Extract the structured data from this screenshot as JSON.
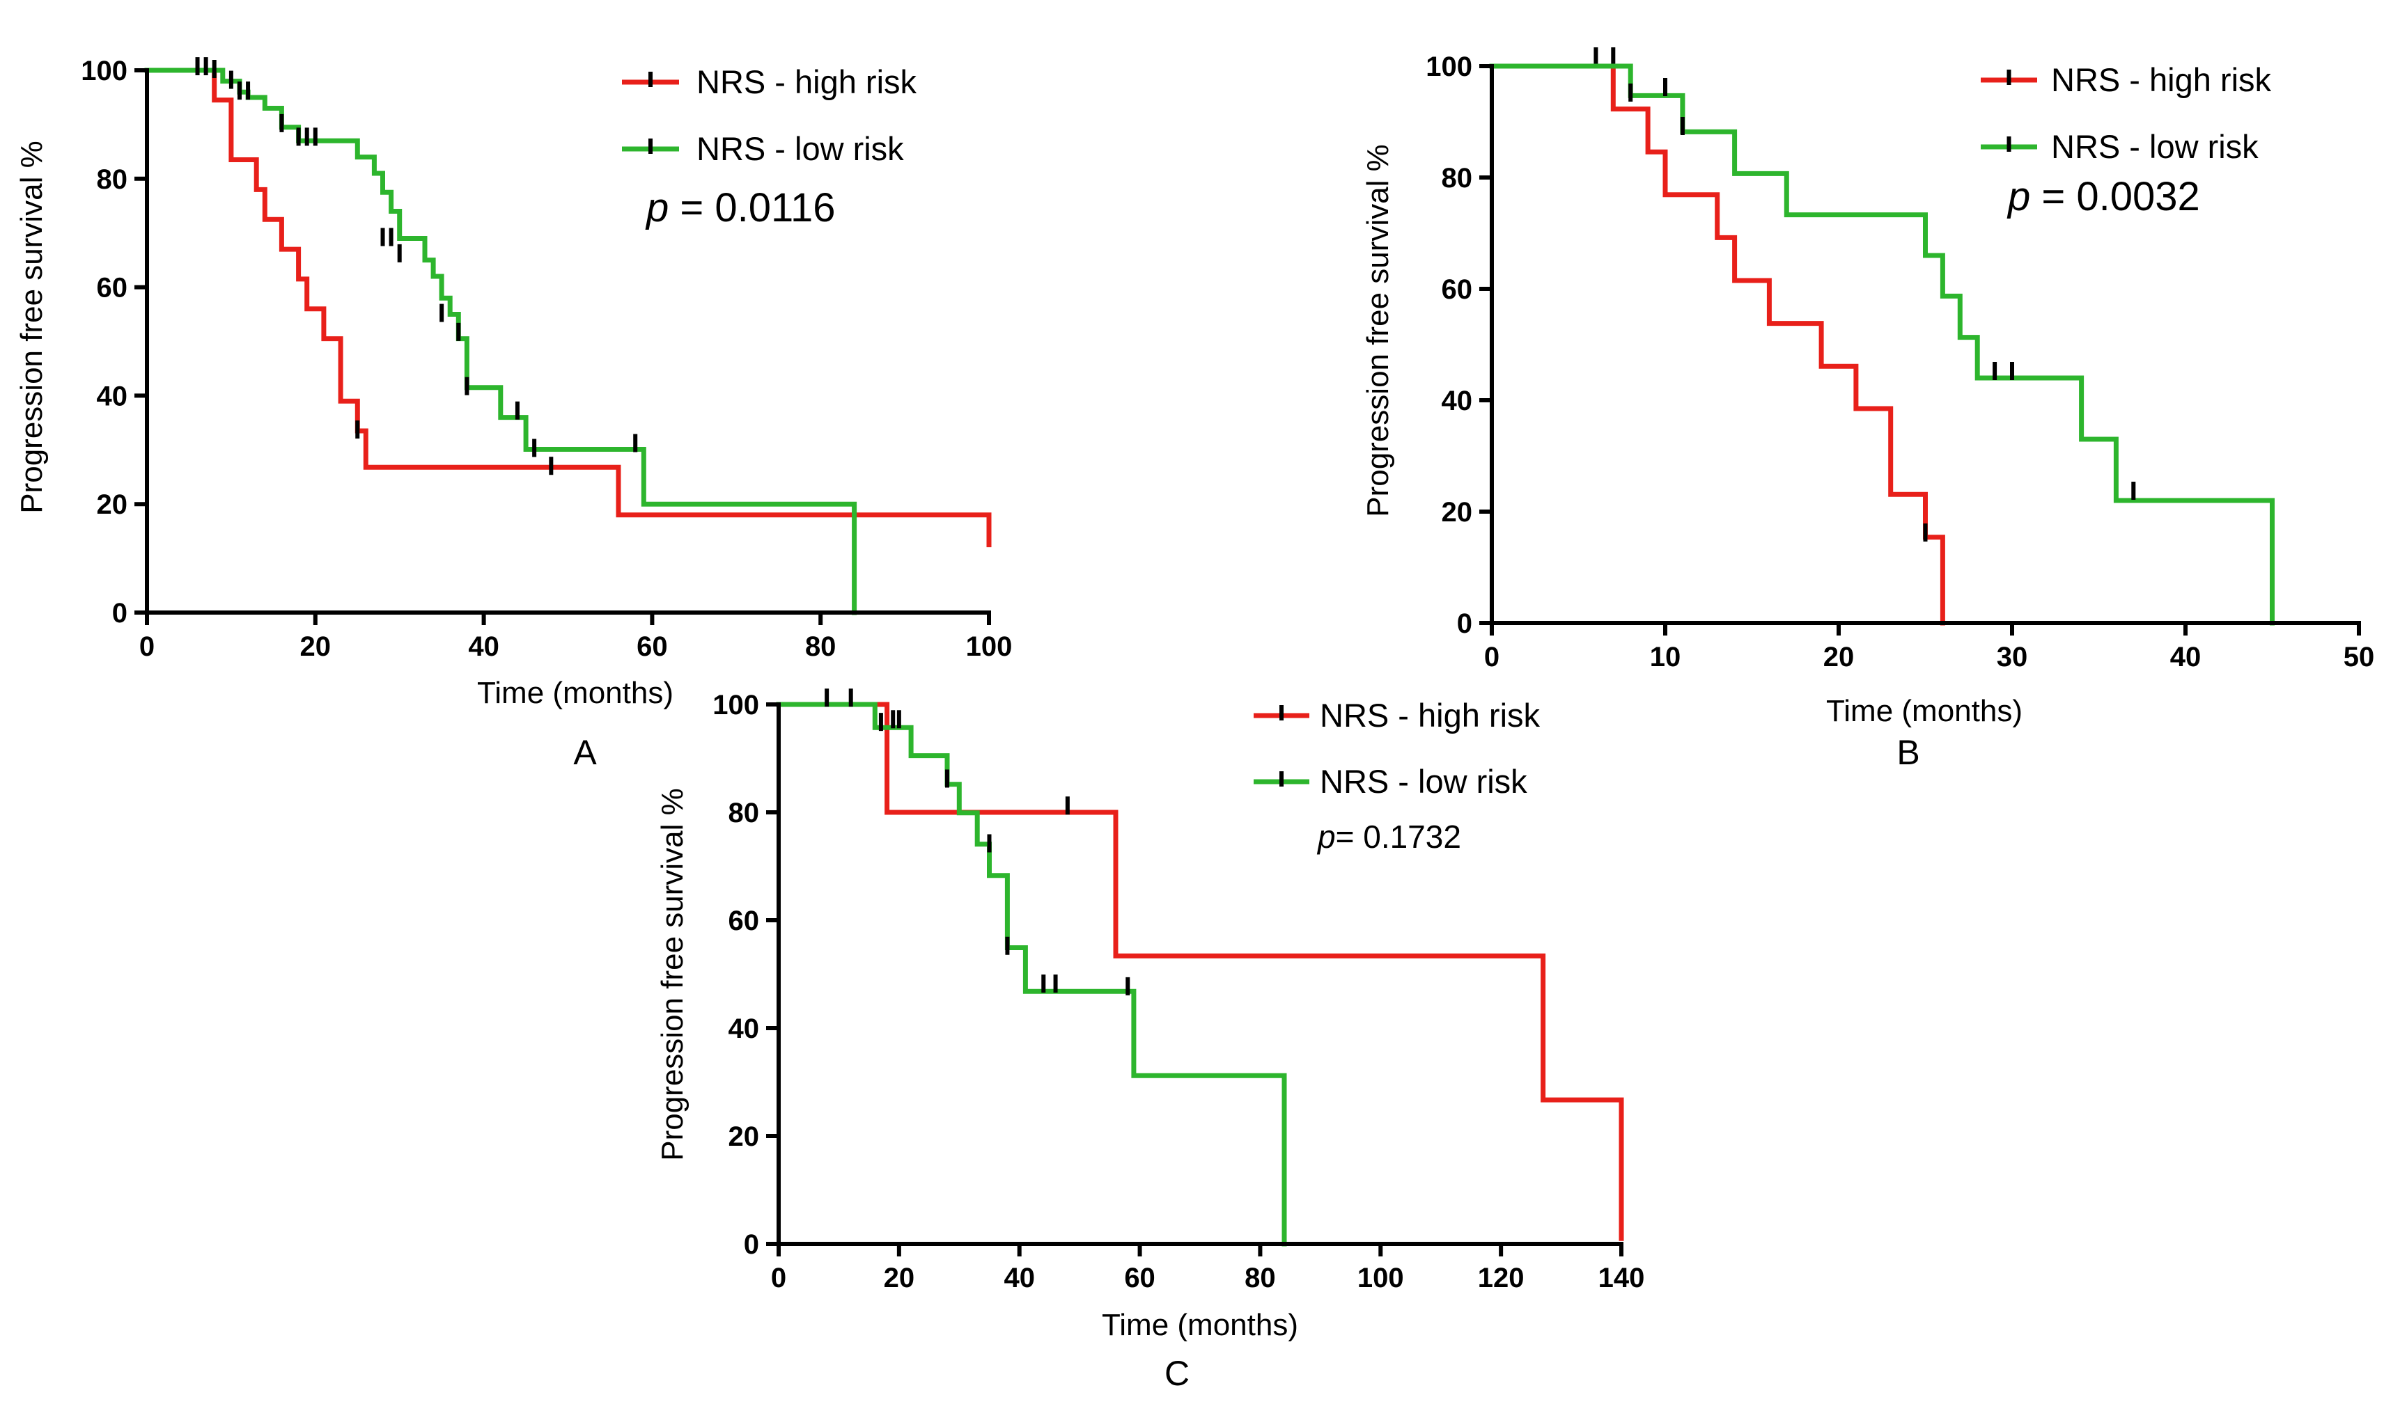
{
  "chart_data": [
    {
      "type": "line",
      "panel_label": "A",
      "title": "",
      "xlabel": "Time (months)",
      "ylabel": "Progression free survival %",
      "xlim": [
        0,
        100
      ],
      "ylim": [
        0,
        100
      ],
      "xticks": [
        0,
        20,
        40,
        60,
        80,
        100
      ],
      "yticks": [
        0,
        20,
        40,
        60,
        80,
        100
      ],
      "legend": [
        "NRS - high risk",
        "NRS - low risk"
      ],
      "legend_position": "top-right",
      "p_prefix": "p",
      "p_text": " = 0.0116",
      "series": [
        {
          "name": "NRS - high risk",
          "color": "#e8201a",
          "x": [
            0,
            7,
            8,
            10,
            13,
            14,
            16,
            18,
            19,
            21,
            23,
            25,
            26,
            56,
            100,
            100
          ],
          "y": [
            100,
            100,
            94.5,
            83.5,
            78,
            72.5,
            67,
            61.5,
            56,
            50.5,
            39,
            33.5,
            26.8,
            18,
            18,
            12.5
          ],
          "censored": [
            [
              25,
              33.5
            ],
            [
              48,
              26.8
            ]
          ]
        },
        {
          "name": "NRS - low risk",
          "color": "#2db52d",
          "x": [
            0,
            6,
            9,
            11,
            12,
            14,
            16,
            18,
            25,
            27,
            28,
            29,
            30,
            33,
            34,
            35,
            36,
            37,
            38,
            42,
            45,
            59,
            84,
            84
          ],
          "y": [
            100,
            100,
            98,
            96,
            95,
            93,
            89.5,
            87,
            84,
            81,
            77.5,
            74,
            69,
            65,
            62,
            58,
            55,
            50.5,
            41.5,
            36,
            30.1,
            20,
            20,
            0
          ],
          "censored": [
            [
              6,
              100.5
            ],
            [
              7,
              100.5
            ],
            [
              8,
              100
            ],
            [
              10,
              98
            ],
            [
              11,
              96
            ],
            [
              12,
              96
            ],
            [
              16,
              90
            ],
            [
              18,
              87.5
            ],
            [
              19,
              87.5
            ],
            [
              20,
              87.5
            ],
            [
              28,
              69
            ],
            [
              29,
              69
            ],
            [
              30,
              66
            ],
            [
              35,
              55
            ],
            [
              37,
              51.5
            ],
            [
              38,
              41.5
            ],
            [
              44,
              37
            ],
            [
              46,
              30.1
            ],
            [
              58,
              31
            ]
          ]
        }
      ]
    },
    {
      "type": "line",
      "panel_label": "B",
      "title": "",
      "xlabel": "Time (months)",
      "ylabel": "Progression free survival %",
      "xlim": [
        0,
        50
      ],
      "ylim": [
        0,
        100
      ],
      "xticks": [
        0,
        10,
        20,
        30,
        40,
        50
      ],
      "yticks": [
        0,
        20,
        40,
        60,
        80,
        100
      ],
      "legend": [
        "NRS - high risk",
        "NRS - low risk"
      ],
      "legend_position": "top-right",
      "p_prefix": "p",
      "p_text": " = 0.0032",
      "series": [
        {
          "name": "NRS - high risk",
          "color": "#e8201a",
          "x": [
            0,
            7,
            9,
            10,
            13,
            14,
            16,
            19,
            21,
            23,
            25,
            26,
            26
          ],
          "y": [
            100,
            92.3,
            84.6,
            76.9,
            69.2,
            61.5,
            53.8,
            46.1,
            38.5,
            23.1,
            15.4,
            15.4,
            0
          ],
          "censored": [
            [
              6,
              101.5
            ],
            [
              7,
              101.5
            ],
            [
              25,
              16
            ]
          ]
        },
        {
          "name": "NRS - low risk",
          "color": "#2db52d",
          "x": [
            0,
            8,
            11,
            14,
            17,
            25,
            26,
            27,
            28,
            34,
            36,
            45,
            45
          ],
          "y": [
            100,
            94.7,
            88.2,
            80.7,
            73.3,
            66,
            58.7,
            51.3,
            44,
            33,
            22,
            22,
            0
          ],
          "censored": [
            [
              8,
              95
            ],
            [
              10,
              96
            ],
            [
              11,
              89
            ],
            [
              29,
              45
            ],
            [
              30,
              45
            ],
            [
              37,
              23.5
            ]
          ]
        }
      ]
    },
    {
      "type": "line",
      "panel_label": "C",
      "title": "",
      "xlabel": "Time (months)",
      "ylabel": "Progression free survival %",
      "xlim": [
        0,
        140
      ],
      "ylim": [
        0,
        100
      ],
      "xticks": [
        0,
        20,
        40,
        60,
        80,
        100,
        120,
        140
      ],
      "yticks": [
        0,
        20,
        40,
        60,
        80,
        100
      ],
      "legend": [
        "NRS - high risk",
        "NRS - low risk"
      ],
      "legend_position": "top-right",
      "p_prefix": "p",
      "p_text": "= 0.1732",
      "series": [
        {
          "name": "NRS - high risk",
          "color": "#e8201a",
          "x": [
            0,
            18,
            56,
            127,
            140,
            140
          ],
          "y": [
            100,
            80,
            53.4,
            26.7,
            26.7,
            1
          ],
          "censored": [
            [
              48,
              81
            ]
          ]
        },
        {
          "name": "NRS - low risk",
          "color": "#2db52d",
          "x": [
            0,
            16,
            22,
            28,
            30,
            33,
            35,
            38,
            41,
            59,
            84,
            84
          ],
          "y": [
            100,
            95.7,
            90.5,
            85.2,
            79.9,
            74.1,
            68.3,
            54.9,
            46.8,
            31.2,
            31.2,
            0
          ],
          "censored": [
            [
              8,
              101
            ],
            [
              12,
              101
            ],
            [
              17,
              96.5
            ],
            [
              19,
              97
            ],
            [
              20,
              97
            ],
            [
              28,
              86
            ],
            [
              35,
              74
            ],
            [
              38,
              55
            ],
            [
              44,
              48
            ],
            [
              46,
              48
            ],
            [
              58,
              47.5
            ]
          ]
        }
      ]
    }
  ]
}
